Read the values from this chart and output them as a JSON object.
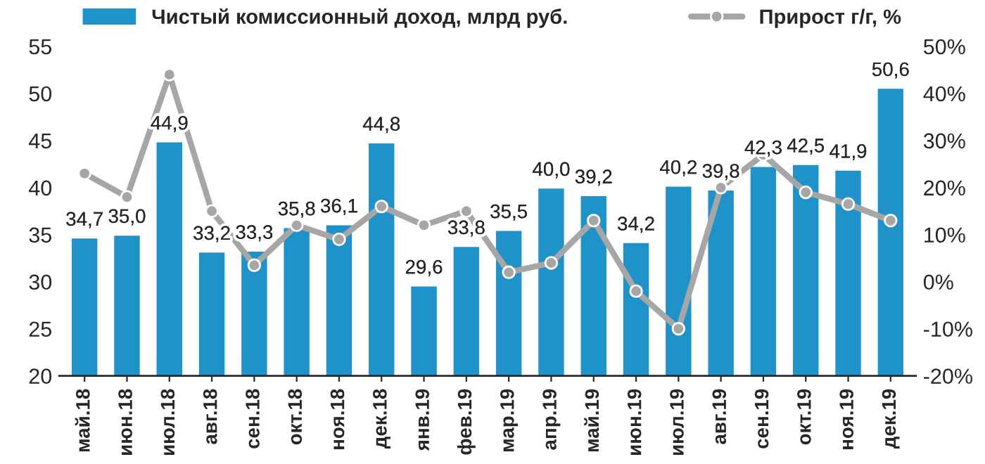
{
  "chart_data": {
    "type": "bar",
    "categories": [
      "май.18",
      "июн.18",
      "июл.18",
      "авг.18",
      "сен.18",
      "окт.18",
      "ноя.18",
      "дек.18",
      "янв.19",
      "фев.19",
      "мар.19",
      "апр.19",
      "май.19",
      "июн.19",
      "июл.19",
      "авг.19",
      "сен.19",
      "окт.19",
      "ноя.19",
      "дек.19"
    ],
    "series": [
      {
        "name": "Чистый комиссионный доход, млрд руб.",
        "color": "#1f93c9",
        "values": [
          34.7,
          35.0,
          44.9,
          33.2,
          33.3,
          35.8,
          36.1,
          44.8,
          29.6,
          33.8,
          35.5,
          40.0,
          39.2,
          34.2,
          40.2,
          39.8,
          42.3,
          42.5,
          41.9,
          50.6
        ],
        "value_labels": [
          "34,7",
          "35,0",
          "44,9",
          "33,2",
          "33,3",
          "35,8",
          "36,1",
          "44,8",
          "29,6",
          "33,8",
          "35,5",
          "40,0",
          "39,2",
          "34,2",
          "40,2",
          "39,8",
          "42,3",
          "42,5",
          "41,9",
          "50,6"
        ]
      },
      {
        "name": "Прирост г/г, %",
        "type": "line",
        "axis": "y2",
        "color": "#a6a6a6",
        "marker": "circle",
        "values": [
          23,
          18,
          44,
          15,
          3.5,
          12,
          9,
          16,
          12,
          15,
          2,
          4,
          13,
          -2,
          -10,
          20,
          27,
          19,
          16.5,
          13
        ]
      }
    ],
    "ylim": [
      20,
      55
    ],
    "yticks": [
      20,
      25,
      30,
      35,
      40,
      45,
      50,
      55
    ],
    "y2lim": [
      -20,
      50
    ],
    "y2ticks": [
      {
        "value": -20,
        "label": "-20%"
      },
      {
        "value": -10,
        "label": "-10%"
      },
      {
        "value": 0,
        "label": "0%"
      },
      {
        "value": 10,
        "label": "10%"
      },
      {
        "value": 20,
        "label": "20%"
      },
      {
        "value": 30,
        "label": "30%"
      },
      {
        "value": 40,
        "label": "40%"
      },
      {
        "value": 50,
        "label": "50%"
      }
    ],
    "legend": "top",
    "grid": false
  }
}
